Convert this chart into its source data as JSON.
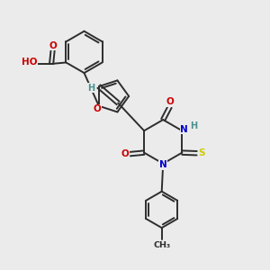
{
  "bg_color": "#ebebeb",
  "bond_color": "#2d2d2d",
  "bond_width": 1.4,
  "atom_colors": {
    "O": "#cc0000",
    "N": "#0000cc",
    "S": "#cccc00",
    "H": "#4a9090",
    "C": "#2d2d2d"
  },
  "font_size": 7.5
}
